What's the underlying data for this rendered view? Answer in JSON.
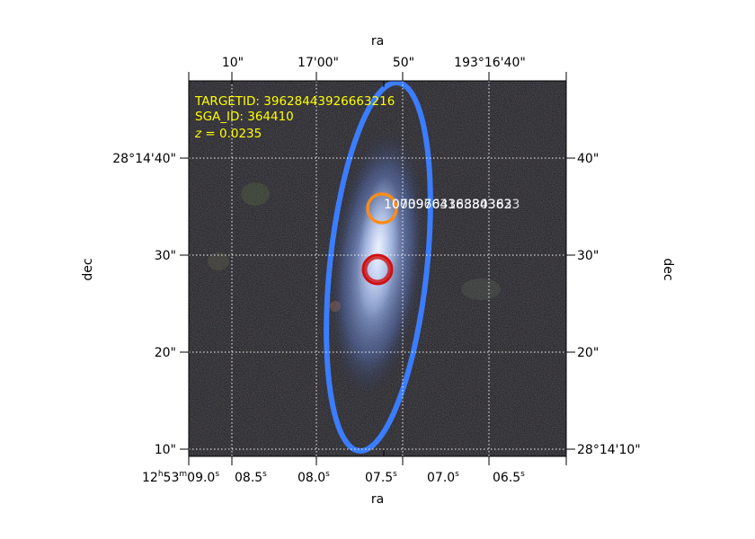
{
  "figure": {
    "top_axis_title": "ra",
    "bottom_axis_title": "ra",
    "left_axis_title": "dec",
    "right_axis_title": "dec",
    "top_ticks": [
      "10\"",
      "17'00\"",
      "50\"",
      "193°16'40\""
    ],
    "bottom_ticks": [
      {
        "main": "12",
        "sup1": "h",
        "mid": "53",
        "sup2": "m",
        "tail": "09.0",
        "sup3": "s"
      },
      {
        "main": "08.5",
        "sup1": "s"
      },
      {
        "main": "08.0",
        "sup1": "s"
      },
      {
        "main": "07.5",
        "sup1": "s"
      },
      {
        "main": "07.0",
        "sup1": "s"
      },
      {
        "main": "06.5",
        "sup1": "s"
      }
    ],
    "left_ticks": [
      "28°14'40\"",
      "30\"",
      "20\"",
      "10\""
    ],
    "right_ticks": [
      "40\"",
      "30\"",
      "20\"",
      "28°14'10\""
    ]
  },
  "info": {
    "targetid": "TARGETID: 39628443926663216",
    "sga_id": "SGA_ID: 364410",
    "z_var": "z",
    "z_value": " = 0.0235",
    "color": "#ffff00"
  },
  "fibers": {
    "label_a": "1070976436384363",
    "label_b": "10039603188303823",
    "orange_color": "#ff8c1a",
    "red_color": "#d01010",
    "ellipse_color": "#3b7dff"
  }
}
